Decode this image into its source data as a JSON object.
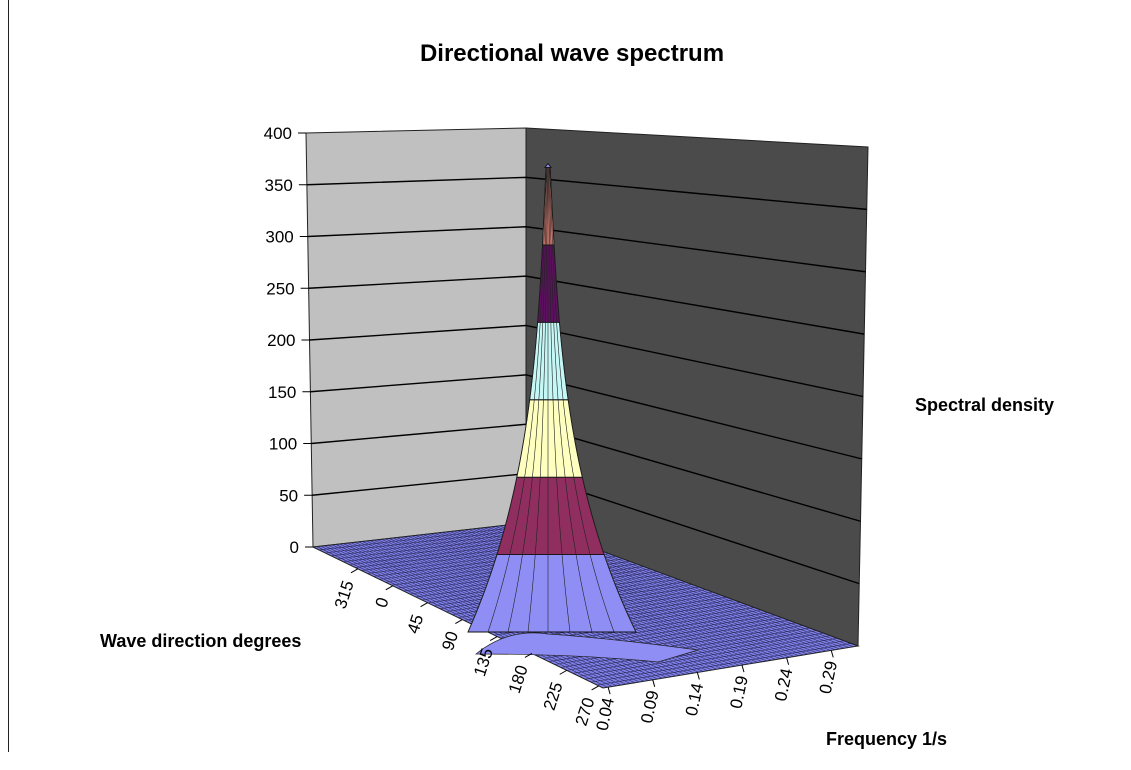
{
  "chart_data": {
    "type": "surface",
    "title": "Directional wave spectrum",
    "zlabel": "Spectral density",
    "xlabel": "Frequency 1/s",
    "ylabel": "Wave direction degrees",
    "z_ticks": [
      "0",
      "50",
      "100",
      "150",
      "200",
      "250",
      "300",
      "350",
      "400"
    ],
    "zlim": [
      0,
      400
    ],
    "frequency_ticks": [
      "0.04",
      "0.09",
      "0.14",
      "0.19",
      "0.24",
      "0.29"
    ],
    "direction_ticks": [
      "270",
      "225",
      "180",
      "135",
      "90",
      "45",
      "0",
      "315"
    ],
    "peak": {
      "frequency": 0.04,
      "direction": 180,
      "value": 360
    },
    "band_colors": [
      "#8e8ef5",
      "#8f2e5f",
      "#ffffc0",
      "#c4f7f5",
      "#5e1060",
      "#f08a7c",
      "#8e8ef5"
    ],
    "walls": {
      "left": "#c0c0c0",
      "back": "#4b4b4b",
      "floor": "#7f7fe8"
    }
  }
}
